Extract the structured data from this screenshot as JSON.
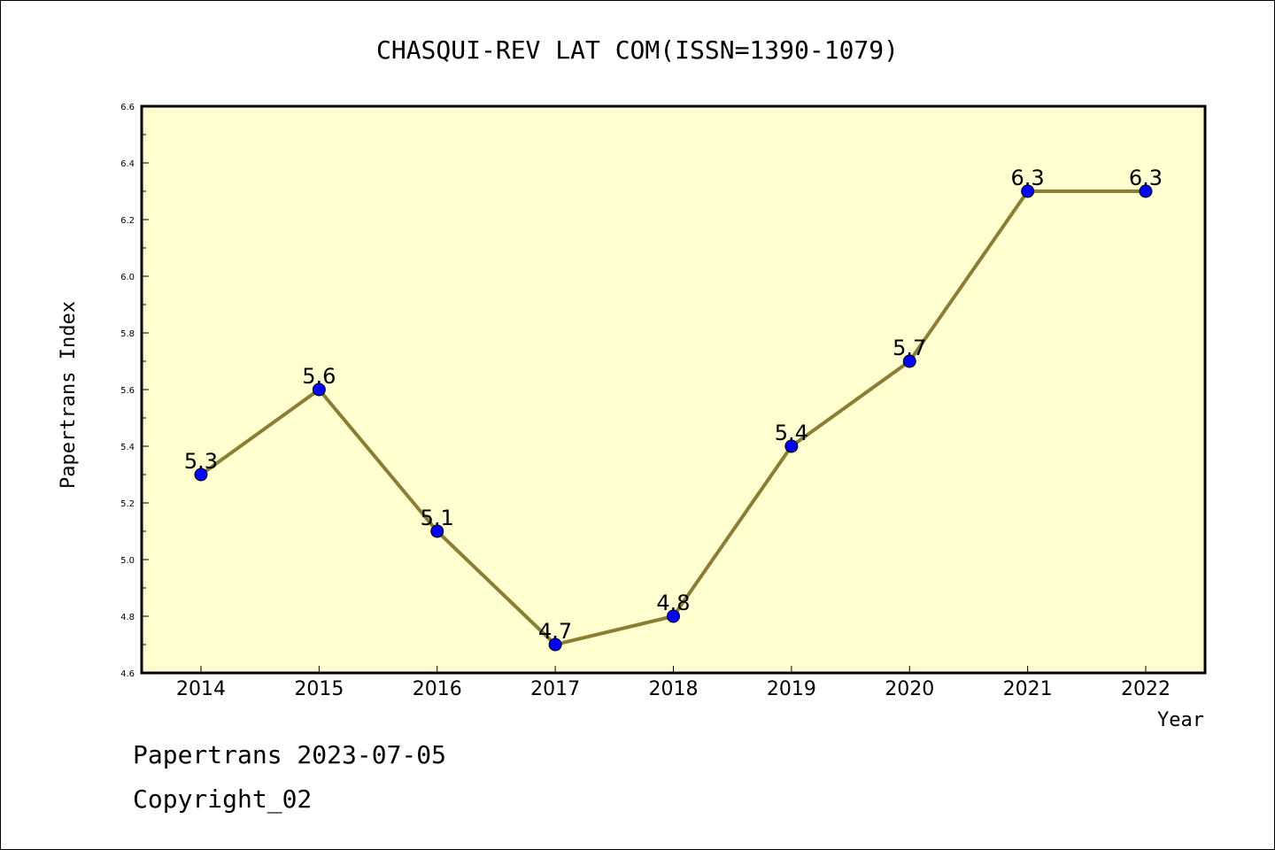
{
  "chart_data": {
    "type": "line",
    "title": "CHASQUI-REV LAT COM(ISSN=1390-1079)",
    "xlabel": "Year",
    "ylabel": "Papertrans Index",
    "categories": [
      "2014",
      "2015",
      "2016",
      "2017",
      "2018",
      "2019",
      "2020",
      "2021",
      "2022"
    ],
    "series": [
      {
        "values": [
          5.3,
          5.6,
          5.1,
          4.7,
          4.8,
          5.4,
          5.7,
          6.3,
          6.3
        ],
        "labels": [
          "5.3",
          "5.6",
          "5.1",
          "4.7",
          "4.8",
          "5.4",
          "5.7",
          "6.3",
          "6.3"
        ]
      }
    ],
    "ylim": [
      4.6,
      6.6
    ],
    "yticks": [
      "4.6",
      "4.8",
      "5.0",
      "5.2",
      "5.4",
      "5.6",
      "5.8",
      "6.0",
      "6.2",
      "6.4",
      "6.6"
    ],
    "grid": false,
    "colors": {
      "plot_background": "#ffffd0",
      "line": "#8b7d32",
      "marker": "#0000ff"
    }
  },
  "footer": {
    "line1": "Papertrans 2023-07-05",
    "line2": "Copyright_02"
  }
}
